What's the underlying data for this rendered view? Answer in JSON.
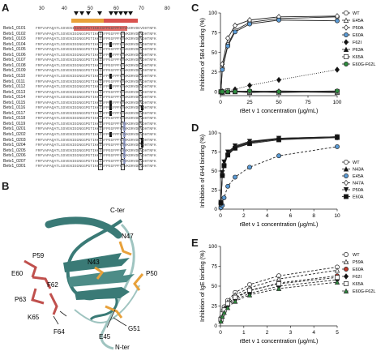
{
  "figure": {
    "panel_letters": [
      "A",
      "B",
      "C",
      "D",
      "E"
    ]
  },
  "alignment": {
    "ruler_ticks": [
      "30",
      "40",
      "50",
      "60",
      "70",
      "80"
    ],
    "rows": [
      {
        "name": "Betv1_0101",
        "seq": "FRFVAPAQATLSSVENIEGNGGPGTIKKISFPEGFPFKYVKDRVDEVDHTNFK"
      },
      {
        "name": "Betv1_0102",
        "seq": "FRFVAPAQATLSSVENIEGNGGPGTIKKISFPEGFPFKYVKDRVDEVDHTNFK"
      },
      {
        "name": "Betv1_0103",
        "seq": "FRFVAPAQATLSSVENIEGNGGPGTIKKISFPEGFPFKYVKDRVDEVDHTNFK"
      },
      {
        "name": "Betv1_0104",
        "seq": "FRFVAPAQATLSSVENIEGNGGPGTIKKISFPEGFPFKYVKDRVDEVDHTNFK"
      },
      {
        "name": "Betv1_0105",
        "seq": "FRFVAPAQATLSSVENIEGNGGPGTIKKISFPEGFPFKYVKDRVDEVDHTNFK"
      },
      {
        "name": "Betv1_0106",
        "seq": "FRFVAPAQATLSSVENIEGNGGPGTIKKISFPEGFPFKYVKDRVDEVDHTNFK"
      },
      {
        "name": "Betv1_0107",
        "seq": "FRFVAPAQATLSSVENIEGNGGPGTIKKISFPEGFPFKYVKDRVDEVDHTNFK"
      },
      {
        "name": "Betv1_0108",
        "seq": "FRFVAPAQATLSSVENIEGNGGPGTIKKISFPEGFPFKYVKDRVDEVDHTNFK"
      },
      {
        "name": "Betv1_0109",
        "seq": "FRFVAPAQATLSSVENIEGNGGPGTIKKISFPEGFPFKYVKDRVDEVDHTNFK"
      },
      {
        "name": "Betv1_0110",
        "seq": "FRFVAPAQATLSSVENIEGNGGPGTIKKISFPEGFPFKYVKDRVDEVDHTNFK"
      },
      {
        "name": "Betv1_0111",
        "seq": "FRFVAPAQATLSSVENIEGNGGPGTIKKISFPEGFPFKYVKDRVDEVDHTNFK"
      },
      {
        "name": "Betv1_0112",
        "seq": "FRFVAPAQATLSSVENIEGNGGPGTIKKISFPEGFPFKYVKDRVDEVDHTNFK"
      },
      {
        "name": "Betv1_0113",
        "seq": "FRFVAPAQATLSSVENIEGNGGPGTIKKISFPEGFPFKYVKDRVDEVDHTNFK"
      },
      {
        "name": "Betv1_0114",
        "seq": "FRFVAPAQATLSSVENIEGNGGPGTIKKISFPEGFPFKYVKDRVDEVDHTNFK"
      },
      {
        "name": "Betv1_0115",
        "seq": "FRFVAPAQATLSSVENIEGNGGPGTIKKISFPEGFPFKYVKDRVDEVDHTNFK"
      },
      {
        "name": "Betv1_0116",
        "seq": "FRFVAPAQATLSSVENIEGNGGPGTIKKISFPEGFPFKYVKDRVDEVDHTNFK"
      },
      {
        "name": "Betv1_0117",
        "seq": "FRFVAPAQATLSSVENIEGNGGPGTIKKISFPEGFPFKYVKDRVDEVDHTNFK"
      },
      {
        "name": "Betv1_0118",
        "seq": "FRFVAPAQATLSSVENIEGNGGPGTIKKISFPEGFPFKYVKDRVDEVDHTNFK"
      },
      {
        "name": "Betv1_0119",
        "seq": "FRFVAPAQATLSSVENIEGNGGPGTIKKISFPEGFPFKYVKDRVDEVDHTNFK"
      },
      {
        "name": "Betv1_0201",
        "seq": "FRFVAPAQATLSSVENIEGNGGPGTIKKISFPEGFPFKYVKDRVDEVDHTNFK"
      },
      {
        "name": "Betv1_0202",
        "seq": "FRFVAPAQATLSSVENIEGNGGPGTIKKISFPEGFPFKYVKDRVDEVDHTNFK"
      },
      {
        "name": "Betv1_0203",
        "seq": "FRFVAPAQATLSSVENIEGNGGPGTIKKISFPEGFPFKYVKDRVDEVDHTNFK"
      },
      {
        "name": "Betv1_0204",
        "seq": "FRFVAPAQATLSSVENIEGNGGPGTIKKISFPEGFPFKYVKDRVDEVDHTNFK"
      },
      {
        "name": "Betv1_0205",
        "seq": "FRFVAPAQATLSSVENIEGNGGPGTIKKISFPEGFPFKYVKDRVDEVDHTNFK"
      },
      {
        "name": "Betv1_0206",
        "seq": "FRFVAPAQATLSSVENIEGNGGPGTIKKISFPEGFPFKYVKDRVDEVDHTNFK"
      },
      {
        "name": "Betv1_0207",
        "seq": "FRFVAPAQATLSSVENIEGNGGPGTIKKISFPEGFPFKYVKDRVDEVDHTNFK"
      },
      {
        "name": "Betv1_0301",
        "seq": "FRFVAPAQATLSSVENIEGNGGPGTIKKISFPEGFPFKYVKDRVDEVDHTNFK"
      }
    ]
  },
  "structure": {
    "labels": {
      "c_ter": "C-ter",
      "n_ter": "N-ter",
      "p59": "P59",
      "n43": "N43",
      "n47": "N47",
      "e60": "E60",
      "f62": "F62",
      "p50": "P50",
      "p63": "P63",
      "k65": "K65",
      "f64": "F64",
      "e45": "E45",
      "g51": "G51"
    },
    "colors": {
      "ribbon": "#3a7a76",
      "ribbon_light": "#9fc4c0",
      "red_residues": "#c0504d",
      "orange_residues": "#e8a13a"
    }
  },
  "chart_data": [
    {
      "panel": "C",
      "type": "line",
      "xlabel": "rBet v 1 concentration  (µg/mL)",
      "ylabel": "Inhibition of 5B4 binding (%)",
      "xlim": [
        0,
        100
      ],
      "ylim": [
        -5,
        100
      ],
      "xticks": [
        0,
        25,
        50,
        75,
        100
      ],
      "yticks": [
        0,
        25,
        50,
        75,
        100
      ],
      "legend_position": "right",
      "x": [
        0.4,
        1.6,
        6.3,
        12.5,
        25,
        50,
        100
      ],
      "series": [
        {
          "name": "WT",
          "marker": "circle-open",
          "dash": "solid",
          "values": [
            0,
            30,
            60,
            78,
            88,
            93,
            95
          ]
        },
        {
          "name": "E45A",
          "marker": "triangle-open",
          "dash": "solid",
          "values": [
            0,
            -1,
            0,
            0,
            -1,
            0,
            -1
          ]
        },
        {
          "name": "P50A",
          "marker": "diamond-open",
          "dash": "solid",
          "values": [
            0,
            35,
            68,
            84,
            91,
            95,
            96
          ]
        },
        {
          "name": "E60A",
          "marker": "circle-blue",
          "dash": "solid",
          "values": [
            0,
            28,
            58,
            76,
            86,
            91,
            90
          ]
        },
        {
          "name": "F62I",
          "marker": "diamond-filled",
          "dash": "dotted",
          "values": [
            0,
            0,
            1,
            3,
            8,
            15,
            28
          ]
        },
        {
          "name": "P63A",
          "marker": "triangle-filled",
          "dash": "solid",
          "values": [
            0,
            1,
            0,
            1,
            0,
            1,
            0
          ]
        },
        {
          "name": "K65A",
          "marker": "square-open",
          "dash": "solid",
          "values": [
            0,
            0,
            1,
            0,
            0,
            -1,
            0
          ]
        },
        {
          "name": "E60G-F62L",
          "marker": "circle-green",
          "dash": "solid",
          "values": [
            0,
            0,
            0,
            0,
            1,
            0,
            1
          ]
        }
      ]
    },
    {
      "panel": "D",
      "type": "line",
      "xlabel": "rBet v 1 concentration  (µg/mL)",
      "ylabel": "Inhibition of 6H4 binding (%)",
      "xlim": [
        0,
        10
      ],
      "ylim": [
        0,
        100
      ],
      "xticks": [
        0,
        2,
        4,
        6,
        8,
        10
      ],
      "yticks": [
        0,
        25,
        50,
        75,
        100
      ],
      "legend_position": "right",
      "x": [
        0.04,
        0.16,
        0.31,
        0.63,
        1.25,
        2.5,
        5,
        10
      ],
      "series": [
        {
          "name": "WT",
          "marker": "circle-open",
          "dash": "solid",
          "values": [
            8,
            45,
            58,
            72,
            80,
            87,
            92,
            95
          ]
        },
        {
          "name": "N43A",
          "marker": "triangle-filled",
          "dash": "solid",
          "values": [
            6,
            47,
            60,
            74,
            82,
            88,
            93,
            95
          ]
        },
        {
          "name": "E45A",
          "marker": "circle-blue",
          "dash": "dashed",
          "values": [
            2,
            5,
            15,
            30,
            42,
            55,
            70,
            82
          ]
        },
        {
          "name": "N47A",
          "marker": "diamond-open",
          "dash": "solid",
          "values": [
            7,
            46,
            59,
            73,
            81,
            88,
            92,
            94
          ]
        },
        {
          "name": "P50A",
          "marker": "triangle-down",
          "dash": "solid",
          "values": [
            9,
            48,
            62,
            75,
            83,
            89,
            93,
            95
          ]
        },
        {
          "name": "E60A",
          "marker": "square-filled",
          "dash": "solid",
          "values": [
            8,
            44,
            57,
            71,
            80,
            86,
            91,
            94
          ]
        }
      ]
    },
    {
      "panel": "E",
      "type": "line",
      "xlabel": "rBet v 1 concentration  (µg/mL)",
      "ylabel": "Inhibition of IgE binding (%)",
      "xlim": [
        0,
        5
      ],
      "ylim": [
        0,
        100
      ],
      "xticks": [
        0,
        1,
        2,
        3,
        4,
        5
      ],
      "yticks": [
        0,
        25,
        50,
        75,
        100
      ],
      "legend_position": "right",
      "x": [
        0.02,
        0.08,
        0.16,
        0.31,
        0.63,
        1.25,
        2.5,
        5
      ],
      "series": [
        {
          "name": "WT",
          "marker": "circle-open",
          "dash": "dashed",
          "values": [
            10,
            18,
            24,
            32,
            42,
            52,
            63,
            74
          ]
        },
        {
          "name": "P59A",
          "marker": "triangle-open",
          "dash": "dashed",
          "values": [
            9,
            16,
            22,
            30,
            39,
            48,
            59,
            70
          ]
        },
        {
          "name": "E60A",
          "marker": "circle-red",
          "dash": "dashed",
          "values": [
            8,
            14,
            20,
            27,
            35,
            44,
            54,
            63
          ]
        },
        {
          "name": "F62I",
          "marker": "diamond-filled",
          "dash": "dashed",
          "values": [
            7,
            13,
            18,
            25,
            33,
            41,
            50,
            58
          ]
        },
        {
          "name": "K65A",
          "marker": "square-open",
          "dash": "dashed",
          "values": [
            8,
            15,
            20,
            28,
            36,
            45,
            53,
            61
          ]
        },
        {
          "name": "E60G-F62L",
          "marker": "triangle-green",
          "dash": "dashed",
          "values": [
            6,
            12,
            17,
            23,
            31,
            39,
            47,
            55
          ]
        }
      ]
    }
  ]
}
